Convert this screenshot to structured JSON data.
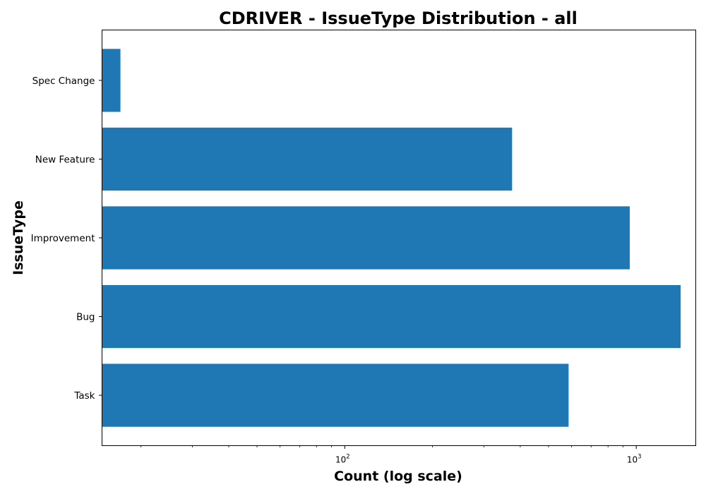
{
  "chart_data": {
    "type": "bar",
    "orientation": "horizontal",
    "title": "CDRIVER - IssueType Distribution - all",
    "xlabel": "Count (log scale)",
    "ylabel": "IssueType",
    "x_scale": "log",
    "xlim": [
      14.7,
      1600
    ],
    "grid": false,
    "bar_color": "#1f77b4",
    "categories": [
      "Task",
      "Bug",
      "Improvement",
      "New Feature",
      "Spec Change"
    ],
    "values": [
      586,
      1420,
      950,
      375,
      17
    ],
    "x_ticks": [
      {
        "value": 100,
        "base": "10",
        "exp": "2"
      },
      {
        "value": 1000,
        "base": "10",
        "exp": "3"
      }
    ]
  }
}
